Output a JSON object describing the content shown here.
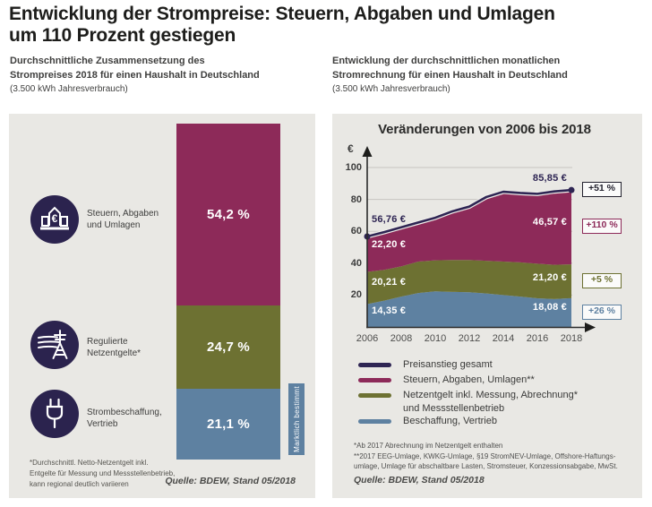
{
  "page": {
    "title": "Entwicklung der Strompreise: Steuern, Abgaben und Umlagen\num 110 Prozent gestiegen"
  },
  "left_panel": {
    "subtitle": "Durchschnittliche Zusammensetzung des\nStrompreises 2018 für einen Haushalt in Deutschland",
    "consumption_note": "(3.500 kWh Jahresverbrauch)",
    "rows": [
      {
        "icon": "bank-euro-icon",
        "label": "Steuern, Abgaben\nund Umlagen"
      },
      {
        "icon": "power-pylon-icon",
        "label": "Regulierte\nNetzentgelte*"
      },
      {
        "icon": "power-plug-icon",
        "label": "Strombeschaffung,\nVertrieb"
      }
    ],
    "market_tab": "Marktlich bestimmt",
    "footnote": "*Durchschnittl. Netto-Netzentgelt inkl.\nEntgelte für Messung und Messstellenbetrieb,\nkann regional deutlich variieren",
    "source": "Quelle: BDEW, Stand 05/2018"
  },
  "right_panel": {
    "subtitle": "Entwicklung der durchschnittlichen monatlichen\nStromrechnung für einen Haushalt in Deutschland",
    "consumption_note": "(3.500 kWh Jahresverbrauch)",
    "chart_title": "Veränderungen von 2006 bis 2018",
    "axis_unit": "€",
    "legend": [
      {
        "label": "Preisanstieg gesamt",
        "color": "#2e2553"
      },
      {
        "label": "Steuern, Abgaben, Umlagen**",
        "color": "#8d2a59"
      },
      {
        "label": "Netzentgelt inkl. Messung, Abrechnung*\nund Messstellenbetrieb",
        "color": "#6d7132"
      },
      {
        "label": "Beschaffung, Vertrieb",
        "color": "#5e81a1"
      }
    ],
    "footnote1": "*Ab 2017 Abrechnung im Netzentgelt enthalten",
    "footnote2": "**2017 EEG-Umlage, KWKG-Umlage, §19 StromNEV-Umlage, Offshore-Haftungs-\numlage, Umlage für abschaltbare Lasten, Stromsteuer, Konzessionsabgabe, MwSt.",
    "source": "Quelle: BDEW, Stand 05/2018"
  },
  "colors": {
    "panel_background": "#e9e8e4",
    "taxes_magenta": "#8d2a59",
    "grid_olive": "#6d7132",
    "supply_steelblue": "#5e81a1",
    "total_navy": "#2e2553",
    "icon_circle_navy": "#2b234e",
    "gridline_gray": "#c7c5c1"
  },
  "chart_data": [
    {
      "type": "bar",
      "title": "Durchschnittliche Zusammensetzung des Strompreises 2018 für einen Haushalt in Deutschland (3.500 kWh Jahresverbrauch)",
      "unit": "%",
      "stacked": true,
      "categories": [
        "2018"
      ],
      "segments": [
        {
          "label": "Steuern, Abgaben und Umlagen",
          "value": 54.2,
          "display": "54,2 %",
          "color": "#8d2a59"
        },
        {
          "label": "Regulierte Netzentgelte*",
          "value": 24.7,
          "display": "24,7 %",
          "color": "#6d7132"
        },
        {
          "label": "Strombeschaffung, Vertrieb",
          "value": 21.1,
          "display": "21,1 %",
          "color": "#5e81a1",
          "annotation": "Marktlich bestimmt"
        }
      ]
    },
    {
      "type": "area",
      "title": "Veränderungen von 2006 bis 2018",
      "xlabel": "",
      "ylabel": "€",
      "ylim": [
        0,
        100
      ],
      "yticks": [
        20,
        40,
        60,
        80,
        100
      ],
      "grid": true,
      "legend_position": "bottom",
      "x": [
        2006,
        2007,
        2008,
        2009,
        2010,
        2011,
        2012,
        2013,
        2014,
        2015,
        2016,
        2017,
        2018
      ],
      "xticks": [
        2006,
        2008,
        2010,
        2012,
        2014,
        2016,
        2018
      ],
      "series": [
        {
          "name": "Beschaffung, Vertrieb",
          "color": "#5e81a1",
          "values": [
            14.35,
            16.5,
            19.0,
            21.3,
            22.3,
            22.0,
            21.8,
            21.0,
            20.0,
            19.0,
            18.0,
            17.5,
            18.08
          ],
          "start_label": "14,35 €",
          "end_label": "18,08 €",
          "change_badge": "+26 %"
        },
        {
          "name": "Netzentgelt inkl. Messung, Abrechnung* und Messstellenbetrieb",
          "color": "#6d7132",
          "values": [
            20.21,
            19.3,
            19.0,
            19.7,
            19.5,
            20.0,
            20.2,
            20.5,
            21.0,
            21.5,
            21.7,
            21.5,
            21.2
          ],
          "start_label": "20,21 €",
          "end_label": "21,20 €",
          "change_badge": "+5 %"
        },
        {
          "name": "Steuern, Abgaben, Umlagen**",
          "color": "#8d2a59",
          "values": [
            22.2,
            23.7,
            24.5,
            24.5,
            26.7,
            30.5,
            33.5,
            40.0,
            43.8,
            43.5,
            43.8,
            46.0,
            46.57
          ],
          "start_label": "22,20 €",
          "end_label": "46,57 €",
          "change_badge": "+110 %"
        }
      ],
      "total_line": {
        "name": "Preisanstieg gesamt",
        "color": "#2e2553",
        "start_value": 56.76,
        "end_value": 85.85,
        "start_label": "56,76 €",
        "end_label": "85,85 €",
        "change_badge": "+51 %"
      }
    }
  ]
}
